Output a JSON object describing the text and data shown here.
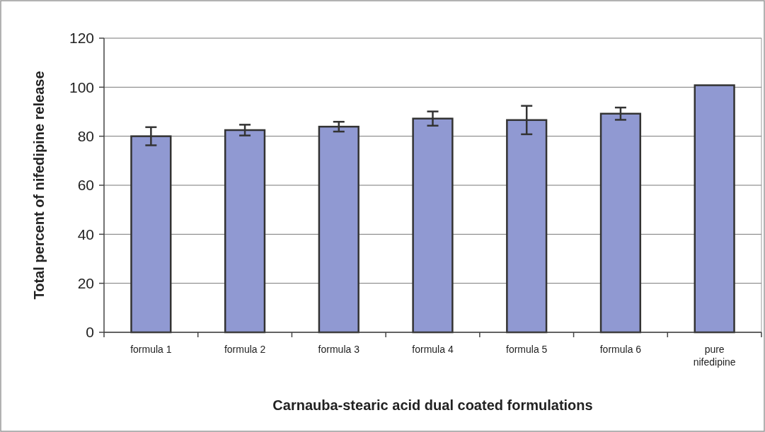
{
  "chart_data": {
    "type": "bar",
    "xlabel": "Carnauba-stearic acid dual coated formulations",
    "ylabel": "Total percent of nifedipine release",
    "categories": [
      "formula 1",
      "formula 2",
      "formula 3",
      "formula 4",
      "formula 5",
      "formula 6",
      "pure\nnifedipine"
    ],
    "values": [
      80,
      82.5,
      83.9,
      87.2,
      86.6,
      89.2,
      100.8
    ],
    "errors": [
      3.7,
      2.2,
      2,
      2.9,
      5.8,
      2.5,
      null
    ],
    "color": "#9099d2",
    "ylim": [
      0,
      120
    ],
    "yticks": [
      0,
      20,
      40,
      60,
      80,
      100,
      120
    ],
    "grid": "y"
  }
}
